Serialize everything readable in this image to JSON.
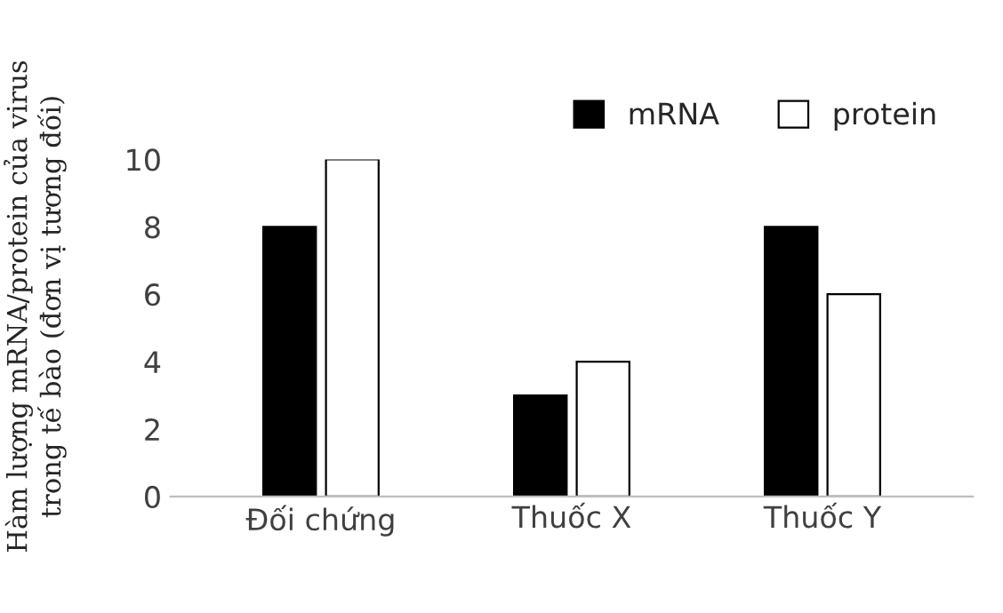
{
  "chart_data": {
    "type": "bar",
    "ylabel": "Hàm lượng mRNA/protein của virus\ntrong tế bào (đơn vị tương đối)",
    "categories": [
      "Đối chứng",
      "Thuốc X",
      "Thuốc Y"
    ],
    "series": [
      {
        "name": "mRNA",
        "color": "#000000",
        "values": [
          8,
          3,
          8
        ]
      },
      {
        "name": "protein",
        "color": "#ffffff",
        "values": [
          10,
          4,
          6
        ]
      }
    ],
    "ylim": [
      0,
      10
    ],
    "yticks": [
      0,
      2,
      4,
      6,
      8,
      10
    ],
    "grid": false,
    "legend": "top right"
  }
}
